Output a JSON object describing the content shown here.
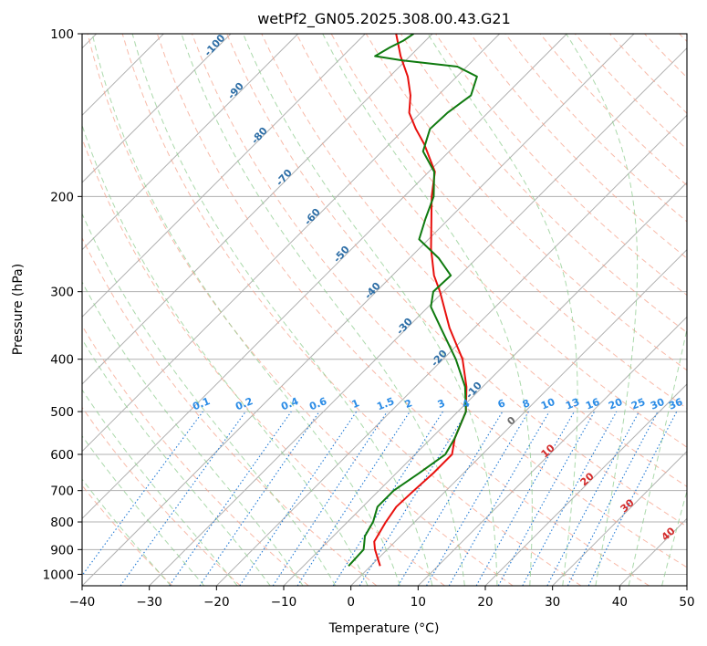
{
  "chart_data": {
    "type": "skew-t",
    "title": "wetPf2_GN05.2025.308.00.43.G21",
    "xlabel": "Temperature (°C)",
    "ylabel": "Pressure (hPa)",
    "xlim": [
      -40,
      50
    ],
    "ylim": [
      1050,
      100
    ],
    "x_ticks": [
      "−40",
      "−30",
      "−20",
      "−10",
      "0",
      "10",
      "20",
      "30",
      "40",
      "50"
    ],
    "y_ticks": [
      {
        "p": 100,
        "label": "100"
      },
      {
        "p": 200,
        "label": "200"
      },
      {
        "p": 300,
        "label": "300"
      },
      {
        "p": 400,
        "label": "400"
      },
      {
        "p": 500,
        "label": "500"
      },
      {
        "p": 600,
        "label": "600"
      },
      {
        "p": 700,
        "label": "700"
      },
      {
        "p": 800,
        "label": "800"
      },
      {
        "p": 900,
        "label": "900"
      },
      {
        "p": 1000,
        "label": "1000"
      }
    ],
    "dry_adiabat_labels": [
      "-100",
      "-90",
      "-80",
      "-70",
      "-60",
      "-50",
      "-40",
      "-30",
      "-20",
      "-10"
    ],
    "moist_adiabat_labels": [
      "0",
      "10",
      "20",
      "30",
      "40"
    ],
    "mixing_ratio_labels": [
      "0.1",
      "0.2",
      "0.4",
      "0.6",
      "1",
      "1.5",
      "2",
      "3",
      "4",
      "6",
      "8",
      "10",
      "13",
      "16",
      "20",
      "25",
      "30",
      "36"
    ],
    "series": [
      {
        "name": "Temperature",
        "color": "#e8100d",
        "points": [
          {
            "p": 965,
            "t": 1.4
          },
          {
            "p": 900,
            "t": -1.8
          },
          {
            "p": 870,
            "t": -3.1
          },
          {
            "p": 800,
            "t": -4.3
          },
          {
            "p": 750,
            "t": -5.0
          },
          {
            "p": 700,
            "t": -4.8
          },
          {
            "p": 650,
            "t": -4.5
          },
          {
            "p": 600,
            "t": -4.5
          },
          {
            "p": 560,
            "t": -6.5
          },
          {
            "p": 500,
            "t": -8.8
          },
          {
            "p": 450,
            "t": -12.4
          },
          {
            "p": 400,
            "t": -17.1
          },
          {
            "p": 350,
            "t": -23.7
          },
          {
            "p": 300,
            "t": -30.5
          },
          {
            "p": 280,
            "t": -33.8
          },
          {
            "p": 250,
            "t": -38.2
          },
          {
            "p": 200,
            "t": -45.9
          },
          {
            "p": 180,
            "t": -49.1
          },
          {
            "p": 160,
            "t": -54.8
          },
          {
            "p": 150,
            "t": -58.3
          },
          {
            "p": 140,
            "t": -61.7
          },
          {
            "p": 130,
            "t": -64.1
          },
          {
            "p": 120,
            "t": -67.3
          },
          {
            "p": 110,
            "t": -71.4
          },
          {
            "p": 100,
            "t": -75.4
          }
        ]
      },
      {
        "name": "Dewpoint",
        "color": "#0f7a0f",
        "points": [
          {
            "p": 965,
            "t": -3.3
          },
          {
            "p": 900,
            "t": -3.5
          },
          {
            "p": 880,
            "t": -4.2
          },
          {
            "p": 850,
            "t": -5.3
          },
          {
            "p": 800,
            "t": -6.2
          },
          {
            "p": 750,
            "t": -7.8
          },
          {
            "p": 700,
            "t": -7.8
          },
          {
            "p": 650,
            "t": -6.6
          },
          {
            "p": 600,
            "t": -5.5
          },
          {
            "p": 560,
            "t": -6.5
          },
          {
            "p": 500,
            "t": -8.8
          },
          {
            "p": 450,
            "t": -12.6
          },
          {
            "p": 400,
            "t": -18.1
          },
          {
            "p": 350,
            "t": -25.0
          },
          {
            "p": 320,
            "t": -29.6
          },
          {
            "p": 300,
            "t": -31.5
          },
          {
            "p": 280,
            "t": -31.3
          },
          {
            "p": 260,
            "t": -35.7
          },
          {
            "p": 240,
            "t": -41.4
          },
          {
            "p": 220,
            "t": -43.5
          },
          {
            "p": 200,
            "t": -45.6
          },
          {
            "p": 180,
            "t": -49.2
          },
          {
            "p": 165,
            "t": -53.9
          },
          {
            "p": 150,
            "t": -56.2
          },
          {
            "p": 140,
            "t": -56.0
          },
          {
            "p": 130,
            "t": -55.1
          },
          {
            "p": 120,
            "t": -57.0
          },
          {
            "p": 115,
            "t": -61.4
          },
          {
            "p": 112,
            "t": -70.6
          },
          {
            "p": 110,
            "t": -75.2
          },
          {
            "p": 106,
            "t": -74.3
          },
          {
            "p": 103,
            "t": -73.3
          },
          {
            "p": 100,
            "t": -72.8
          }
        ]
      }
    ]
  }
}
